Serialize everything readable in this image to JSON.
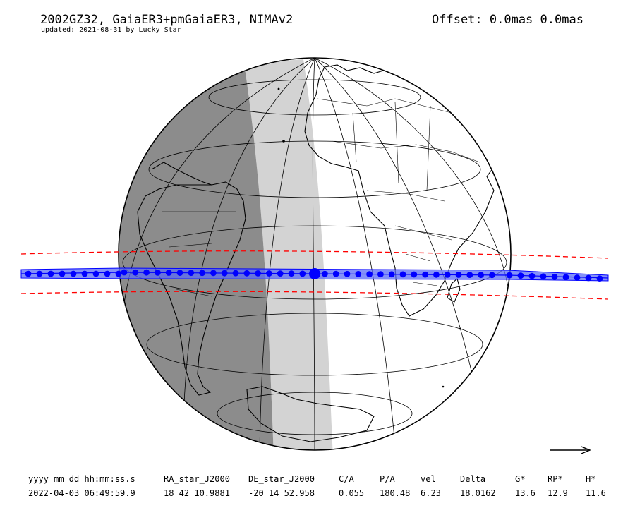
{
  "header": {
    "title": "2002GZ32, GaiaER3+pmGaiaER3, NIMAv2",
    "subtitle": "updated: 2021-08-31 by Lucky Star",
    "offset": "Offset: 0.0mas 0.0mas"
  },
  "map": {
    "projection": "orthographic",
    "colors": {
      "night": "#8c8c8c",
      "twilight": "#d3d3d3",
      "day": "#ffffff",
      "shadow_path": "#0000ff",
      "shadow_fill": "#5b6cf5",
      "uncertainty_limits": "#ff0000"
    },
    "direction_arrow": "arrow-right-icon"
  },
  "table": {
    "headers": [
      "yyyy mm dd hh:mm:ss.s",
      "RA_star_J2000",
      "DE_star_J2000",
      "C/A",
      "P/A",
      "vel",
      "Delta",
      "G*",
      "RP*",
      "H*"
    ],
    "values": [
      "2022-04-03 06:49:59.9",
      "18 42 10.9881",
      "-20 14 52.958",
      "0.055",
      "180.48",
      "6.23",
      "18.0162",
      "13.6",
      "12.9",
      "11.6"
    ]
  }
}
